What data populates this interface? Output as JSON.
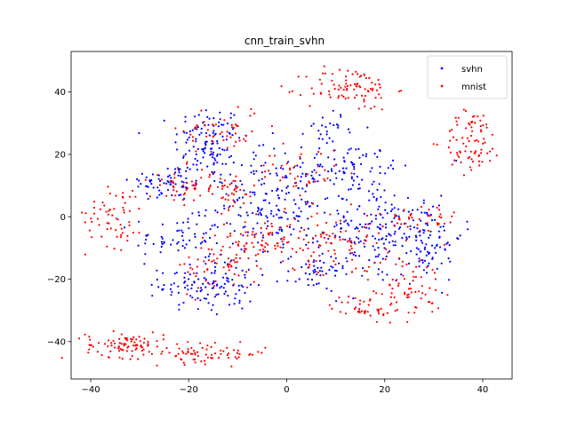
{
  "chart_data": {
    "type": "scatter",
    "title": "cnn_train_svhn",
    "xlabel": "",
    "ylabel": "",
    "xlim": [
      -44,
      46
    ],
    "ylim": [
      -52,
      53
    ],
    "xticks": [
      -40,
      -20,
      0,
      20,
      40
    ],
    "yticks": [
      -40,
      -20,
      0,
      20,
      40
    ],
    "grid": false,
    "legend_position": "top-right",
    "series": [
      {
        "name": "svhn",
        "color": "#0000ff",
        "clusters": [
          {
            "center": [
              -16,
              24
            ],
            "spread": [
              3.5,
              6
            ],
            "count": 110
          },
          {
            "center": [
              -24,
              11
            ],
            "spread": [
              4,
              3
            ],
            "count": 70
          },
          {
            "center": [
              -22,
              -7
            ],
            "spread": [
              4.5,
              3.5
            ],
            "count": 55
          },
          {
            "center": [
              -20,
              -22
            ],
            "spread": [
              3,
              4
            ],
            "count": 60
          },
          {
            "center": [
              -12,
              -22
            ],
            "spread": [
              3,
              4
            ],
            "count": 55
          },
          {
            "center": [
              -2,
              4
            ],
            "spread": [
              7,
              9
            ],
            "count": 230
          },
          {
            "center": [
              9,
              29
            ],
            "spread": [
              2.5,
              2.5
            ],
            "count": 25
          },
          {
            "center": [
              14,
              17
            ],
            "spread": [
              3.5,
              3
            ],
            "count": 50
          },
          {
            "center": [
              6,
              -18
            ],
            "spread": [
              3,
              3
            ],
            "count": 45
          },
          {
            "center": [
              17,
              -4
            ],
            "spread": [
              5,
              9
            ],
            "count": 140
          },
          {
            "center": [
              28,
              -6
            ],
            "spread": [
              4,
              7
            ],
            "count": 110
          }
        ]
      },
      {
        "name": "mnist",
        "color": "#ff0000",
        "clusters": [
          {
            "center": [
              13,
              41
            ],
            "spread": [
              4.5,
              3.5
            ],
            "count": 90
          },
          {
            "center": [
              38,
              24
            ],
            "spread": [
              3,
              5
            ],
            "count": 80
          },
          {
            "center": [
              -35,
              1
            ],
            "spread": [
              3,
              5.5
            ],
            "count": 60
          },
          {
            "center": [
              -33,
              -41
            ],
            "spread": [
              4,
              2
            ],
            "count": 90
          },
          {
            "center": [
              -16,
              -44
            ],
            "spread": [
              6,
              1.5
            ],
            "count": 70
          },
          {
            "center": [
              -21,
              10
            ],
            "spread": [
              3.5,
              3
            ],
            "count": 45
          },
          {
            "center": [
              -12,
              8
            ],
            "spread": [
              3,
              3
            ],
            "count": 40
          },
          {
            "center": [
              -13,
              28
            ],
            "spread": [
              4,
              4
            ],
            "count": 50
          },
          {
            "center": [
              -4,
              -8
            ],
            "spread": [
              6,
              4
            ],
            "count": 90
          },
          {
            "center": [
              -14,
              -16
            ],
            "spread": [
              4,
              4
            ],
            "count": 50
          },
          {
            "center": [
              3,
              14
            ],
            "spread": [
              4,
              4
            ],
            "count": 40
          },
          {
            "center": [
              10,
              -8
            ],
            "spread": [
              5,
              5
            ],
            "count": 70
          },
          {
            "center": [
              16,
              -29
            ],
            "spread": [
              3.5,
              2
            ],
            "count": 40
          },
          {
            "center": [
              24,
              -22
            ],
            "spread": [
              4,
              5
            ],
            "count": 70
          },
          {
            "center": [
              27,
              -1
            ],
            "spread": [
              4,
              3
            ],
            "count": 40
          }
        ]
      }
    ]
  }
}
